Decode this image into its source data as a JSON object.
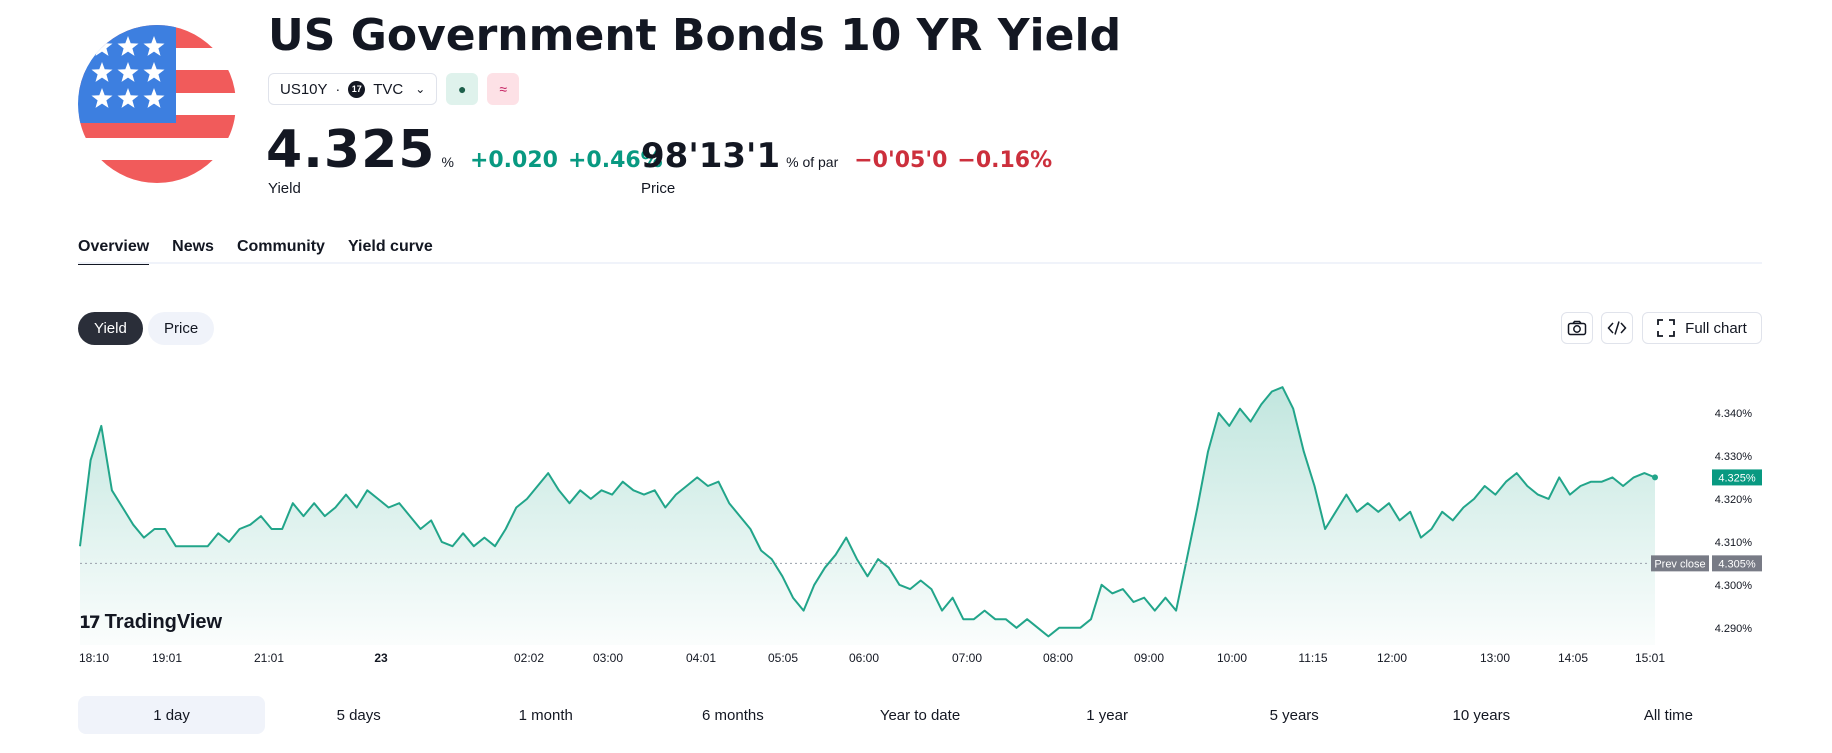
{
  "header": {
    "title": "US Government Bonds 10 YR Yield",
    "symbol": "US10Y",
    "separator": "·",
    "exchange": "TVC",
    "exchange_logo_text": "17",
    "badge_market_icon": "market-status-dot-icon",
    "badge_delay_icon": "approx-icon",
    "badge_market_glyph": "●",
    "badge_delay_glyph": "≈"
  },
  "quotes": {
    "yield": {
      "value": "4.325",
      "unit": "%",
      "change": "+0.020",
      "change_pct": "+0.46%",
      "label": "Yield",
      "color": "#089981"
    },
    "price": {
      "value": "98'13'1",
      "unit": "% of par",
      "change": "−0'05'0",
      "change_pct": "−0.16%",
      "label": "Price",
      "color": "#cc2f3c"
    }
  },
  "tabs": [
    {
      "label": "Overview",
      "active": true
    },
    {
      "label": "News",
      "active": false
    },
    {
      "label": "Community",
      "active": false
    },
    {
      "label": "Yield curve",
      "active": false
    }
  ],
  "chart_toggle": {
    "yield": "Yield",
    "price": "Price",
    "selected": "Yield"
  },
  "chart_tools": {
    "full_chart": "Full chart",
    "screenshot_icon": "camera-icon",
    "embed_icon": "code-icon",
    "fullscreen_icon": "expand-icon"
  },
  "branding": {
    "name": "TradingView",
    "mark": "17"
  },
  "range": {
    "options": [
      "1 day",
      "5 days",
      "1 month",
      "6 months",
      "Year to date",
      "1 year",
      "5 years",
      "10 years",
      "All time"
    ],
    "selected": "1 day"
  },
  "colors": {
    "line": "#22a58a",
    "up": "#089981",
    "down": "#cc2f3c",
    "last_label": "#089981",
    "prev_close_label": "#787b86"
  },
  "chart_data": {
    "type": "area",
    "title": "",
    "xlabel": "",
    "ylabel": "",
    "x_ticks": [
      "18:10",
      "19:01",
      "21:01",
      "23",
      "02:02",
      "03:00",
      "04:01",
      "05:05",
      "06:00",
      "07:00",
      "08:00",
      "09:00",
      "10:00",
      "11:15",
      "12:00",
      "13:00",
      "14:05",
      "15:01"
    ],
    "y_ticks": [
      "4.290%",
      "4.300%",
      "4.310%",
      "4.320%",
      "4.330%",
      "4.340%"
    ],
    "ylim": [
      4.286,
      4.35
    ],
    "last_value": 4.325,
    "last_label": "4.325%",
    "prev_close": 4.305,
    "prev_close_label": "Prev close",
    "prev_close_value_label": "4.305%",
    "series": [
      {
        "values": [
          4.309,
          4.329,
          4.337,
          4.322,
          4.318,
          4.314,
          4.311,
          4.313,
          4.313,
          4.309,
          4.309,
          4.309,
          4.309,
          4.312,
          4.31,
          4.313,
          4.314,
          4.316,
          4.313,
          4.313,
          4.319,
          4.316,
          4.319,
          4.316,
          4.318,
          4.321,
          4.318,
          4.322,
          4.32,
          4.318,
          4.319,
          4.316,
          4.313,
          4.315,
          4.31,
          4.309,
          4.312,
          4.309,
          4.311,
          4.309,
          4.313,
          4.318,
          4.32,
          4.323,
          4.326,
          4.322,
          4.319,
          4.322,
          4.32,
          4.322,
          4.321,
          4.324,
          4.322,
          4.321,
          4.322,
          4.318,
          4.321,
          4.323,
          4.325,
          4.323,
          4.324,
          4.319,
          4.316,
          4.313,
          4.308,
          4.306,
          4.302,
          4.297,
          4.294,
          4.3,
          4.304,
          4.307,
          4.311,
          4.306,
          4.302,
          4.306,
          4.304,
          4.3,
          4.299,
          4.301,
          4.299,
          4.294,
          4.297,
          4.292,
          4.292,
          4.294,
          4.292,
          4.292,
          4.29,
          4.292,
          4.29,
          4.288,
          4.29,
          4.29,
          4.29,
          4.292,
          4.3,
          4.298,
          4.299,
          4.296,
          4.297,
          4.294,
          4.297,
          4.294,
          4.306,
          4.318,
          4.331,
          4.34,
          4.337,
          4.341,
          4.338,
          4.342,
          4.345,
          4.346,
          4.341,
          4.331,
          4.323,
          4.313,
          4.317,
          4.321,
          4.317,
          4.319,
          4.317,
          4.319,
          4.315,
          4.317,
          4.311,
          4.313,
          4.317,
          4.315,
          4.318,
          4.32,
          4.323,
          4.321,
          4.324,
          4.326,
          4.323,
          4.321,
          4.32,
          4.325,
          4.321,
          4.323,
          4.324,
          4.324,
          4.325,
          4.323,
          4.325,
          4.326,
          4.325
        ]
      }
    ],
    "grid": false
  }
}
